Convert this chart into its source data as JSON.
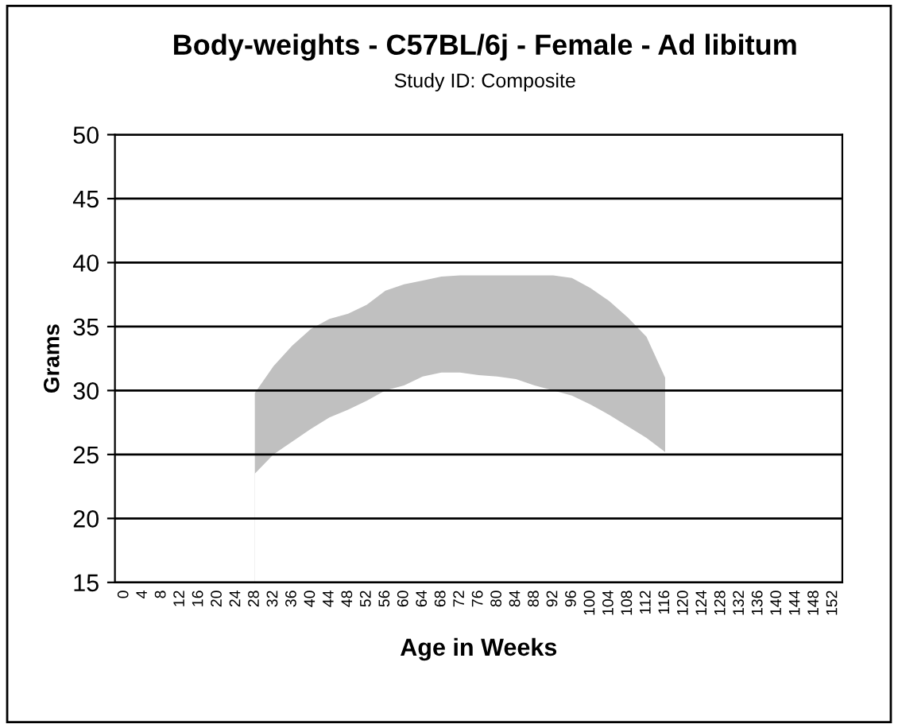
{
  "chart_data": {
    "type": "area",
    "title": "Body-weights - C57BL/6j - Female - Ad libitum",
    "subtitle": "Study ID: Composite",
    "xlabel": "Age in Weeks",
    "ylabel": "Grams",
    "categories": [
      "0",
      "4",
      "8",
      "12",
      "16",
      "20",
      "24",
      "28",
      "32",
      "36",
      "40",
      "44",
      "48",
      "52",
      "56",
      "60",
      "64",
      "68",
      "72",
      "76",
      "80",
      "84",
      "88",
      "92",
      "96",
      "100",
      "104",
      "108",
      "112",
      "116",
      "120",
      "124",
      "128",
      "132",
      "136",
      "140",
      "144",
      "148",
      "152"
    ],
    "series": [
      {
        "color": "#c0c0c0",
        "values": [
          null,
          null,
          null,
          null,
          null,
          null,
          null,
          29.8,
          31.9,
          33.5,
          34.8,
          35.6,
          36.0,
          36.7,
          37.8,
          38.3,
          38.6,
          38.9,
          39.0,
          39.0,
          39.0,
          39.0,
          39.0,
          39.0,
          38.8,
          38.0,
          37.0,
          35.7,
          34.2,
          31.0,
          null,
          null,
          null,
          null,
          null,
          null,
          null,
          null,
          null
        ]
      },
      {
        "color": "#ffffff",
        "values": [
          null,
          null,
          null,
          null,
          null,
          null,
          null,
          23.5,
          25.0,
          26.0,
          27.0,
          27.9,
          28.5,
          29.2,
          30.0,
          30.4,
          31.1,
          31.4,
          31.4,
          31.2,
          31.1,
          30.9,
          30.4,
          30.0,
          29.6,
          28.9,
          28.1,
          27.2,
          26.3,
          25.2,
          null,
          null,
          null,
          null,
          null,
          null,
          null,
          null,
          null
        ]
      }
    ],
    "ylim": [
      15,
      50
    ],
    "yticks": [
      15,
      20,
      25,
      30,
      35,
      40,
      45,
      50
    ],
    "grid": "y",
    "legend": false
  }
}
